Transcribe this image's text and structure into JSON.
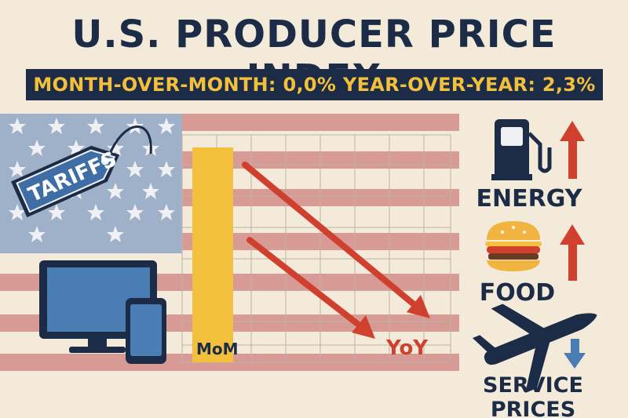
{
  "title": "U.S. PRODUCER PRICE INDEX",
  "banner": "MONTH-OVER-MONTH: 0,0% YEAR-OVER-YEAR: 2,3%",
  "tag_text": "TARIFFS",
  "chart": {
    "mom_label": "MoM",
    "yoy_label": "YoY"
  },
  "indicators": {
    "energy": {
      "label": "ENERGY",
      "direction": "up"
    },
    "food": {
      "label": "FOOD",
      "direction": "up"
    },
    "services": {
      "label": "SERVICE PRICES",
      "direction": "down"
    }
  },
  "colors": {
    "navy": "#1d2c46",
    "gold": "#f2c03c",
    "red": "#d0402f",
    "blue": "#4a7db3",
    "background": "#f3ead9"
  },
  "icons": {
    "tag": "price-tag-icon",
    "monitor": "monitor-icon",
    "phone": "smartphone-icon",
    "fuel": "fuel-pump-icon",
    "burger": "burger-icon",
    "plane": "airplane-icon"
  }
}
